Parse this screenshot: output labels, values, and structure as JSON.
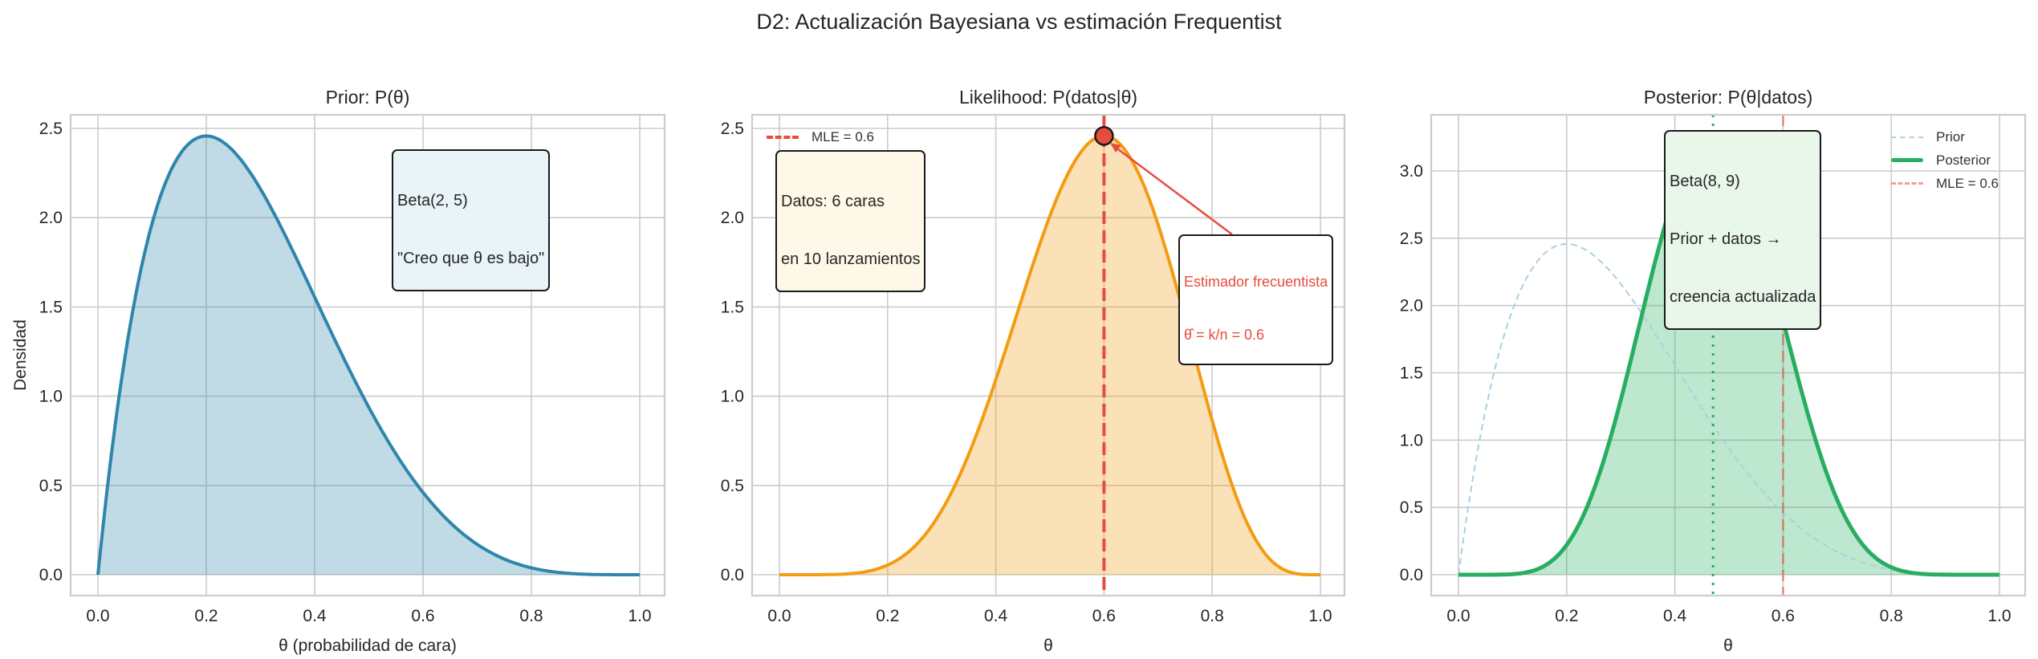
{
  "figure": {
    "suptitle": "D2: Actualización Bayesiana vs estimación Frequentist"
  },
  "panels": [
    {
      "title": "Prior: P(θ)",
      "xlabel": "θ (probabilidad de cara)",
      "ylabel": "Densidad",
      "xticks": [
        "0.0",
        "0.2",
        "0.4",
        "0.6",
        "0.8",
        "1.0"
      ],
      "yticks": [
        "0.0",
        "0.5",
        "1.0",
        "1.5",
        "2.0",
        "2.5"
      ],
      "annotation": {
        "line1": "Beta(2, 5)",
        "line2": "\"Creo que θ es bajo\""
      },
      "colors": {
        "line": "#2E86AB",
        "fill": "#2E86AB",
        "box_bg": "#e8f4f7"
      }
    },
    {
      "title": "Likelihood: P(datos|θ)",
      "xlabel": "θ",
      "ylabel": "",
      "xticks": [
        "0.0",
        "0.2",
        "0.4",
        "0.6",
        "0.8",
        "1.0"
      ],
      "yticks": [
        "0.0",
        "0.5",
        "1.0",
        "1.5",
        "2.0",
        "2.5"
      ],
      "legend": [
        {
          "label": "MLE = 0.6",
          "style": "dashed",
          "color": "#E74C3C"
        }
      ],
      "annotation": {
        "line1": "Datos: 6 caras",
        "line2": "en 10 lanzamientos"
      },
      "arrow_annotation": {
        "line1": "Estimador frecuentista",
        "line2": "θ̂ = k/n = 0.6"
      },
      "colors": {
        "line": "#F39C12",
        "fill": "#F39C12",
        "mle": "#E74C3C",
        "box_bg": "#fef8e8"
      }
    },
    {
      "title": "Posterior: P(θ|datos)",
      "xlabel": "θ",
      "ylabel": "",
      "xticks": [
        "0.0",
        "0.2",
        "0.4",
        "0.6",
        "0.8",
        "1.0"
      ],
      "yticks": [
        "0.0",
        "0.5",
        "1.0",
        "1.5",
        "2.0",
        "2.5",
        "3.0"
      ],
      "legend": [
        {
          "label": "Prior",
          "style": "dashed-thin",
          "color": "#a9d0e0"
        },
        {
          "label": "Posterior",
          "style": "solid-thick",
          "color": "#27AE60"
        },
        {
          "label": "MLE = 0.6",
          "style": "dashed",
          "color": "#f0a095"
        }
      ],
      "annotation": {
        "line1": "Beta(8, 9)",
        "line2": "Prior + datos →",
        "line3": "creencia actualizada"
      },
      "colors": {
        "line": "#27AE60",
        "fill": "#27AE60",
        "prior": "#a9d0e0",
        "mle": "#E74C3C",
        "mean": "#27AE60",
        "box_bg": "#e9f6ea"
      }
    }
  ],
  "chart_data": [
    {
      "type": "area",
      "title": "Prior: P(θ)",
      "xlabel": "θ (probabilidad de cara)",
      "ylabel": "Densidad",
      "xlim": [
        -0.05,
        1.05
      ],
      "ylim": [
        -0.12,
        2.58
      ],
      "grid": true,
      "x": [
        0,
        0.05,
        0.1,
        0.15,
        0.2,
        0.25,
        0.3,
        0.35,
        0.4,
        0.45,
        0.5,
        0.55,
        0.6,
        0.65,
        0.7,
        0.75,
        0.8,
        0.85,
        0.9,
        0.95,
        1.0
      ],
      "series": [
        {
          "name": "Beta(2, 5)",
          "values": [
            0,
            1.222,
            1.968,
            2.349,
            2.458,
            2.373,
            2.161,
            1.874,
            1.555,
            1.235,
            0.938,
            0.677,
            0.461,
            0.291,
            0.17,
            0.088,
            0.038,
            0.013,
            0.003,
            0.0002,
            0
          ]
        }
      ],
      "annotations": [
        "Beta(2, 5)",
        "\"Creo que θ es bajo\""
      ]
    },
    {
      "type": "area",
      "title": "Likelihood: P(datos|θ)",
      "xlabel": "θ",
      "ylabel": "",
      "xlim": [
        -0.05,
        1.05
      ],
      "ylim": [
        -0.12,
        2.58
      ],
      "grid": true,
      "x": [
        0,
        0.05,
        0.1,
        0.15,
        0.2,
        0.25,
        0.3,
        0.35,
        0.4,
        0.45,
        0.5,
        0.55,
        0.6,
        0.65,
        0.7,
        0.75,
        0.8,
        0.85,
        0.9,
        0.95,
        1.0
      ],
      "series": [
        {
          "name": "Likelihood (scaled)",
          "values": [
            0,
            3e-05,
            0.0014,
            0.012,
            0.054,
            0.159,
            0.36,
            0.675,
            1.092,
            1.563,
            2.009,
            2.335,
            2.458,
            2.329,
            1.961,
            1.43,
            0.863,
            0.393,
            0.109,
            0.009,
            0
          ]
        }
      ],
      "vlines": [
        {
          "x": 0.6,
          "label": "MLE = 0.6",
          "style": "dashed"
        }
      ],
      "points": [
        {
          "x": 0.6,
          "y": 2.458,
          "label": "MLE marker"
        }
      ],
      "annotations": [
        "Datos: 6 caras en 10 lanzamientos",
        "Estimador frecuentista θ̂ = k/n = 0.6"
      ],
      "legend_position": "upper left"
    },
    {
      "type": "area",
      "title": "Posterior: P(θ|datos)",
      "xlabel": "θ",
      "ylabel": "",
      "xlim": [
        -0.05,
        1.05
      ],
      "ylim": [
        -0.16,
        3.38
      ],
      "grid": true,
      "x": [
        0,
        0.05,
        0.1,
        0.15,
        0.2,
        0.25,
        0.3,
        0.35,
        0.4,
        0.45,
        0.4667,
        0.5,
        0.55,
        0.6,
        0.65,
        0.7,
        0.75,
        0.8,
        0.85,
        0.9,
        0.95,
        1.0
      ],
      "series": [
        {
          "name": "Posterior",
          "values": [
            0,
            5e-05,
            0.004,
            0.048,
            0.221,
            0.629,
            1.298,
            2.111,
            2.834,
            3.221,
            3.244,
            3.142,
            2.636,
            1.888,
            1.137,
            0.556,
            0.21,
            0.055,
            0.009,
            0.0005,
            0,
            0
          ]
        },
        {
          "name": "Prior",
          "values": [
            0,
            1.222,
            1.968,
            2.349,
            2.458,
            2.373,
            2.161,
            1.874,
            1.555,
            1.235,
            1.128,
            0.938,
            0.677,
            0.461,
            0.291,
            0.17,
            0.088,
            0.038,
            0.013,
            0.003,
            0.0002,
            0
          ]
        }
      ],
      "vlines": [
        {
          "x": 0.6,
          "label": "MLE = 0.6",
          "style": "dashed"
        },
        {
          "x": 0.4706,
          "label": "posterior mean",
          "style": "dotted"
        }
      ],
      "annotations": [
        "Beta(8, 9)",
        "Prior + datos → creencia actualizada"
      ],
      "legend_position": "upper right"
    }
  ]
}
